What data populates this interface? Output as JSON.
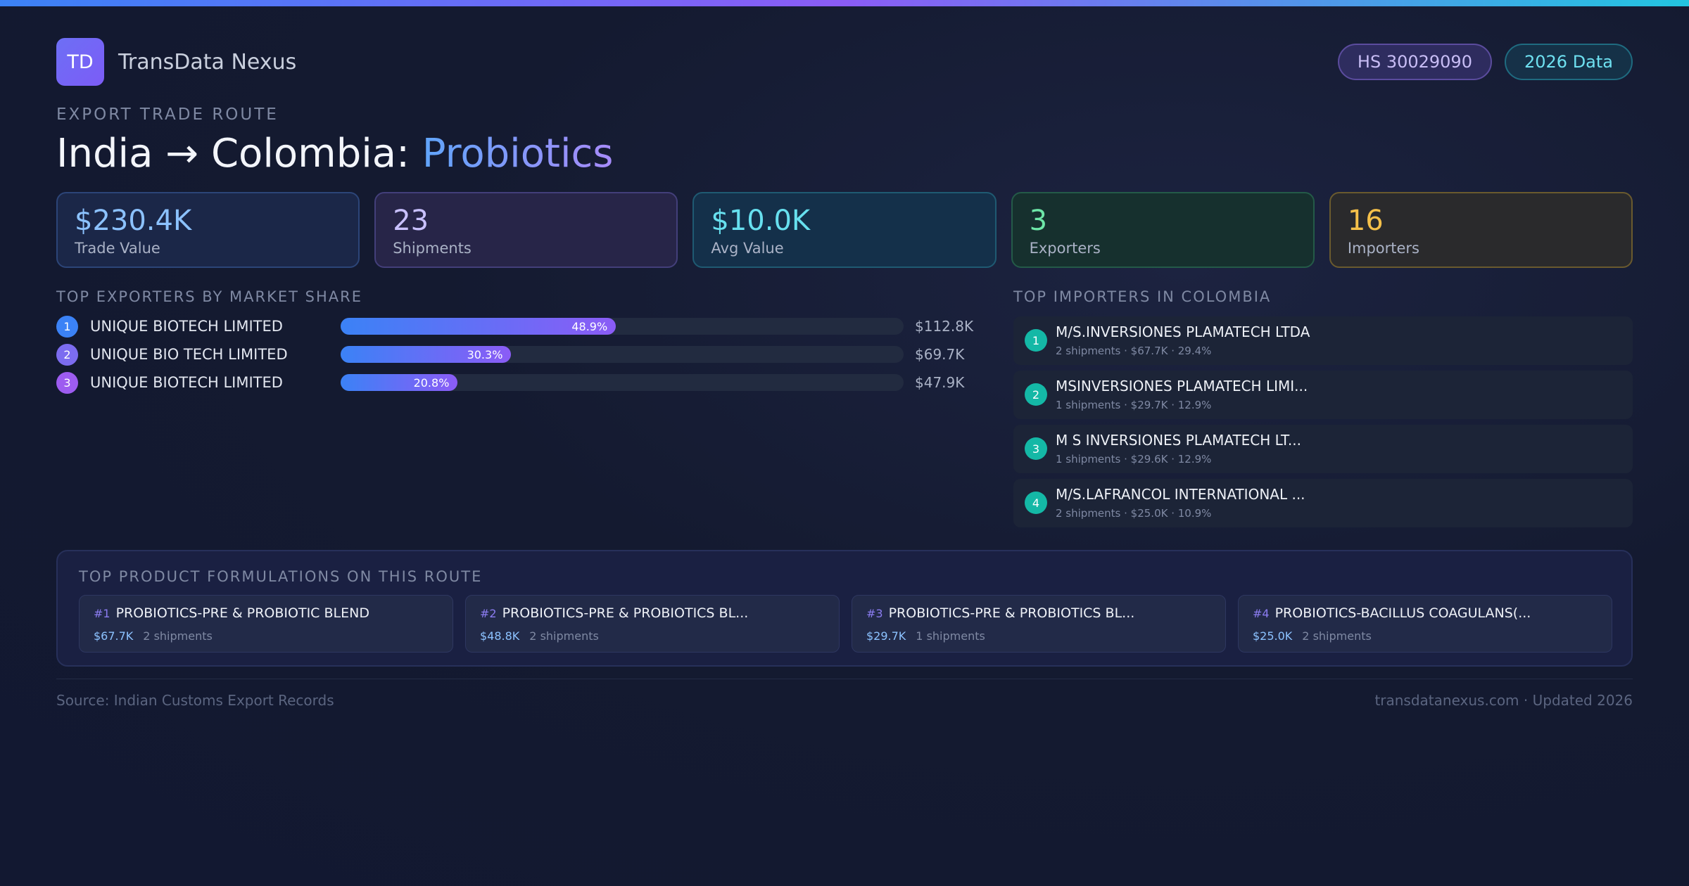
{
  "brand": {
    "logo_text": "TD",
    "name": "TransData Nexus"
  },
  "badges": {
    "hs_code": "HS 30029090",
    "data_year": "2026 Data"
  },
  "route": {
    "eyebrow": "EXPORT TRADE ROUTE",
    "title_prefix": "India → Colombia: ",
    "title_product": "Probiotics"
  },
  "stats": [
    {
      "value": "$230.4K",
      "label": "Trade Value"
    },
    {
      "value": "23",
      "label": "Shipments"
    },
    {
      "value": "$10.0K",
      "label": "Avg Value"
    },
    {
      "value": "3",
      "label": "Exporters"
    },
    {
      "value": "16",
      "label": "Importers"
    }
  ],
  "exporters": {
    "heading": "TOP EXPORTERS BY MARKET SHARE",
    "items": [
      {
        "rank": "1",
        "name": "UNIQUE BIOTECH LIMITED",
        "share_label": "48.9%",
        "share": 48.9,
        "value": "$112.8K"
      },
      {
        "rank": "2",
        "name": "UNIQUE BIO TECH LIMITED",
        "share_label": "30.3%",
        "share": 30.3,
        "value": "$69.7K"
      },
      {
        "rank": "3",
        "name": "UNIQUE BIOTECH LIMITED",
        "share_label": "20.8%",
        "share": 20.8,
        "value": "$47.9K"
      }
    ],
    "rank_colors": [
      "#3b82f6",
      "#7c6cf0",
      "#9d5cf0"
    ]
  },
  "importers": {
    "heading": "TOP IMPORTERS IN COLOMBIA",
    "items": [
      {
        "rank": "1",
        "name": "M/S.INVERSIONES PLAMATECH LTDA",
        "meta": "2 shipments · $67.7K · 29.4%"
      },
      {
        "rank": "2",
        "name": "MSINVERSIONES PLAMATECH LIMI...",
        "meta": "1 shipments · $29.7K · 12.9%"
      },
      {
        "rank": "3",
        "name": "M S INVERSIONES PLAMATECH LT...",
        "meta": "1 shipments · $29.6K · 12.9%"
      },
      {
        "rank": "4",
        "name": "M/S.LAFRANCOL INTERNATIONAL ...",
        "meta": "2 shipments · $25.0K · 10.9%"
      }
    ]
  },
  "products": {
    "heading": "TOP PRODUCT FORMULATIONS ON THIS ROUTE",
    "items": [
      {
        "rank": "#1",
        "name": "PROBIOTICS-PRE & PROBIOTIC BLEND",
        "value": "$67.7K",
        "shipments": "2 shipments"
      },
      {
        "rank": "#2",
        "name": "PROBIOTICS-PRE & PROBIOTICS BL...",
        "value": "$48.8K",
        "shipments": "2 shipments"
      },
      {
        "rank": "#3",
        "name": "PROBIOTICS-PRE & PROBIOTICS BL...",
        "value": "$29.7K",
        "shipments": "1 shipments"
      },
      {
        "rank": "#4",
        "name": "PROBIOTICS-BACILLUS COAGULANS(...",
        "value": "$25.0K",
        "shipments": "2 shipments"
      }
    ]
  },
  "footer": {
    "source": "Source: Indian Customs Export Records",
    "site": "transdatanexus.com · Updated 2026"
  },
  "colors": {
    "accent_blue": "#3b82f6",
    "accent_purple": "#8b5cf6",
    "teal": "#14b8a6"
  }
}
